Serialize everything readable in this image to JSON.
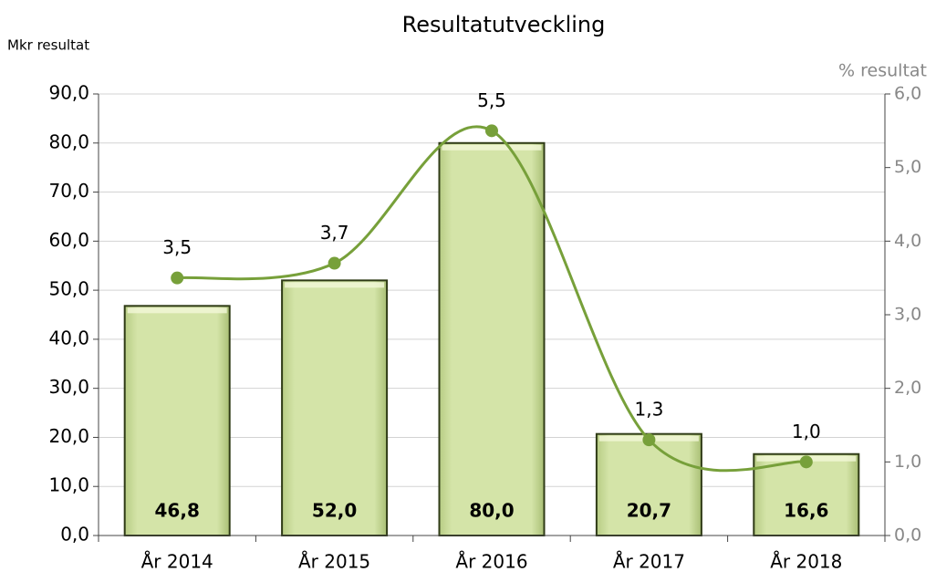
{
  "chart_data": {
    "type": "bar",
    "title": "Resultatutveckling",
    "y_label": "Mkr resultat",
    "y2_label": "% resultat",
    "categories": [
      "År 2014",
      "År 2015",
      "År 2016",
      "År 2017",
      "År 2018"
    ],
    "series": [
      {
        "type": "bar",
        "color": "#cfe0a0",
        "values": [
          46.8,
          52.0,
          80.0,
          20.7,
          16.6
        ],
        "value_labels": [
          "46,8",
          "52,0",
          "80,0",
          "20,7",
          "16,6"
        ]
      },
      {
        "type": "line",
        "axis": "y2",
        "color": "#77a03a",
        "values": [
          3.5,
          3.7,
          5.5,
          1.3,
          1.0
        ],
        "value_labels": [
          "3,5",
          "3,7",
          "5,5",
          "1,3",
          "1,0"
        ]
      }
    ],
    "ylim": [
      0,
      90
    ],
    "yticks": [
      {
        "value": 0,
        "label": "0,0"
      },
      {
        "value": 10,
        "label": "10,0"
      },
      {
        "value": 20,
        "label": "20,0"
      },
      {
        "value": 30,
        "label": "30,0"
      },
      {
        "value": 40,
        "label": "40,0"
      },
      {
        "value": 50,
        "label": "50,0"
      },
      {
        "value": 60,
        "label": "60,0"
      },
      {
        "value": 70,
        "label": "70,0"
      },
      {
        "value": 80,
        "label": "80,0"
      },
      {
        "value": 90,
        "label": "90,0"
      }
    ],
    "y2lim": [
      0,
      6
    ],
    "y2ticks": [
      {
        "value": 0,
        "label": "0,0"
      },
      {
        "value": 1,
        "label": "1,0"
      },
      {
        "value": 2,
        "label": "2,0"
      },
      {
        "value": 3,
        "label": "3,0"
      },
      {
        "value": 4,
        "label": "4,0"
      },
      {
        "value": 5,
        "label": "5,0"
      },
      {
        "value": 6,
        "label": "6,0"
      }
    ],
    "grid": true
  }
}
